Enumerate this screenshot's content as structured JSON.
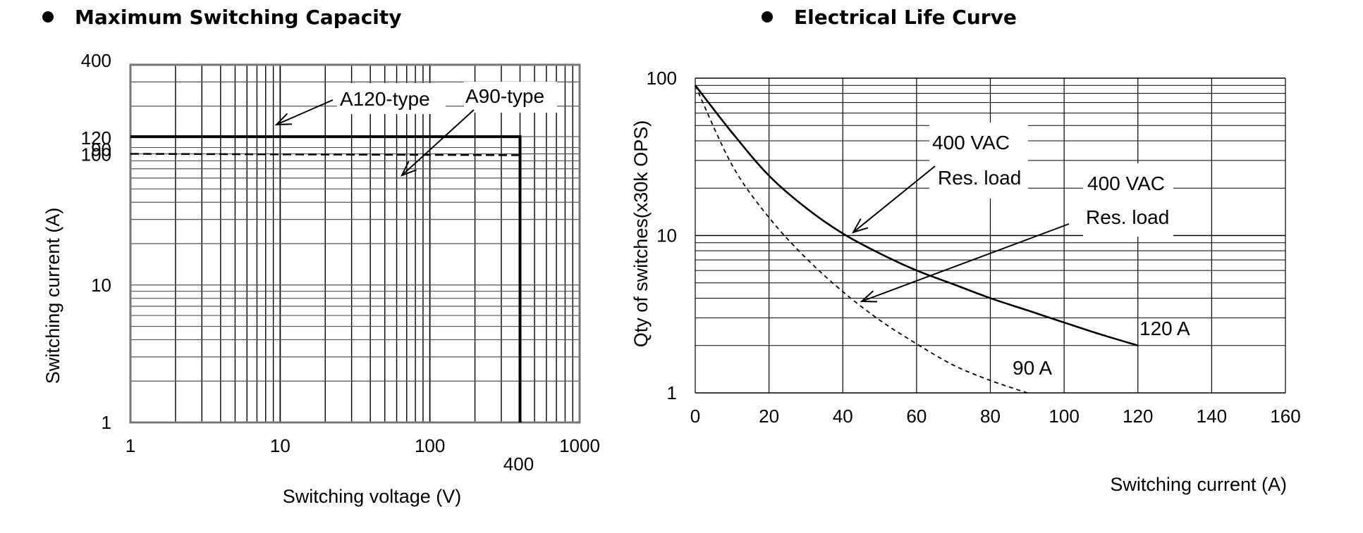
{
  "chart_data": [
    {
      "type": "line",
      "title": "Maximum Switching Capacity",
      "xlabel": "Switching voltage  (V)",
      "ylabel": "Switching current  (A)",
      "xscale": "log",
      "yscale": "log",
      "xlim": [
        1,
        1000
      ],
      "ylim": [
        1,
        400
      ],
      "x_ticks": [
        "1",
        "10",
        "100",
        "1000"
      ],
      "x_extra_tick": "400",
      "y_ticks": [
        "1",
        "10",
        "90",
        "100",
        "120",
        "400"
      ],
      "grid": true,
      "series": [
        {
          "name": "A120-type",
          "style": "solid",
          "color": "#000000",
          "x": [
            1,
            400,
            400
          ],
          "y": [
            120,
            120,
            1
          ]
        },
        {
          "name": "A90-type",
          "style": "dashed",
          "color": "#000000",
          "x": [
            1,
            400
          ],
          "y": [
            90,
            88
          ]
        }
      ],
      "annotations": [
        "A120-type",
        "A90-type"
      ]
    },
    {
      "type": "line",
      "title": "Electrical Life Curve",
      "xlabel": "Switching current  (A)",
      "ylabel": "Qty of switches(x30k OPS)",
      "yscale": "log",
      "xlim": [
        0,
        160
      ],
      "ylim": [
        1,
        100
      ],
      "x_ticks": [
        "0",
        "20",
        "40",
        "60",
        "80",
        "100",
        "120",
        "140",
        "160"
      ],
      "y_ticks": [
        "1",
        "10",
        "100"
      ],
      "grid": true,
      "series": [
        {
          "name": "120 A",
          "style": "solid",
          "color": "#000000",
          "x": [
            0,
            10,
            20,
            30,
            40,
            50,
            60,
            70,
            80,
            90,
            100,
            110,
            120
          ],
          "y": [
            90,
            45,
            24,
            15,
            10.3,
            7.7,
            6.0,
            4.9,
            4.0,
            3.35,
            2.8,
            2.35,
            2.0
          ]
        },
        {
          "name": "90 A",
          "style": "dashed",
          "color": "#000000",
          "x": [
            0,
            10,
            20,
            30,
            40,
            50,
            60,
            70,
            80,
            90
          ],
          "y": [
            90,
            28,
            13,
            7.2,
            4.4,
            2.9,
            2.05,
            1.5,
            1.2,
            1.0
          ]
        }
      ],
      "annotations": [
        "400 VAC",
        "Res. load",
        "400 VAC",
        "Res. load",
        "120 A",
        "90 A"
      ]
    }
  ]
}
